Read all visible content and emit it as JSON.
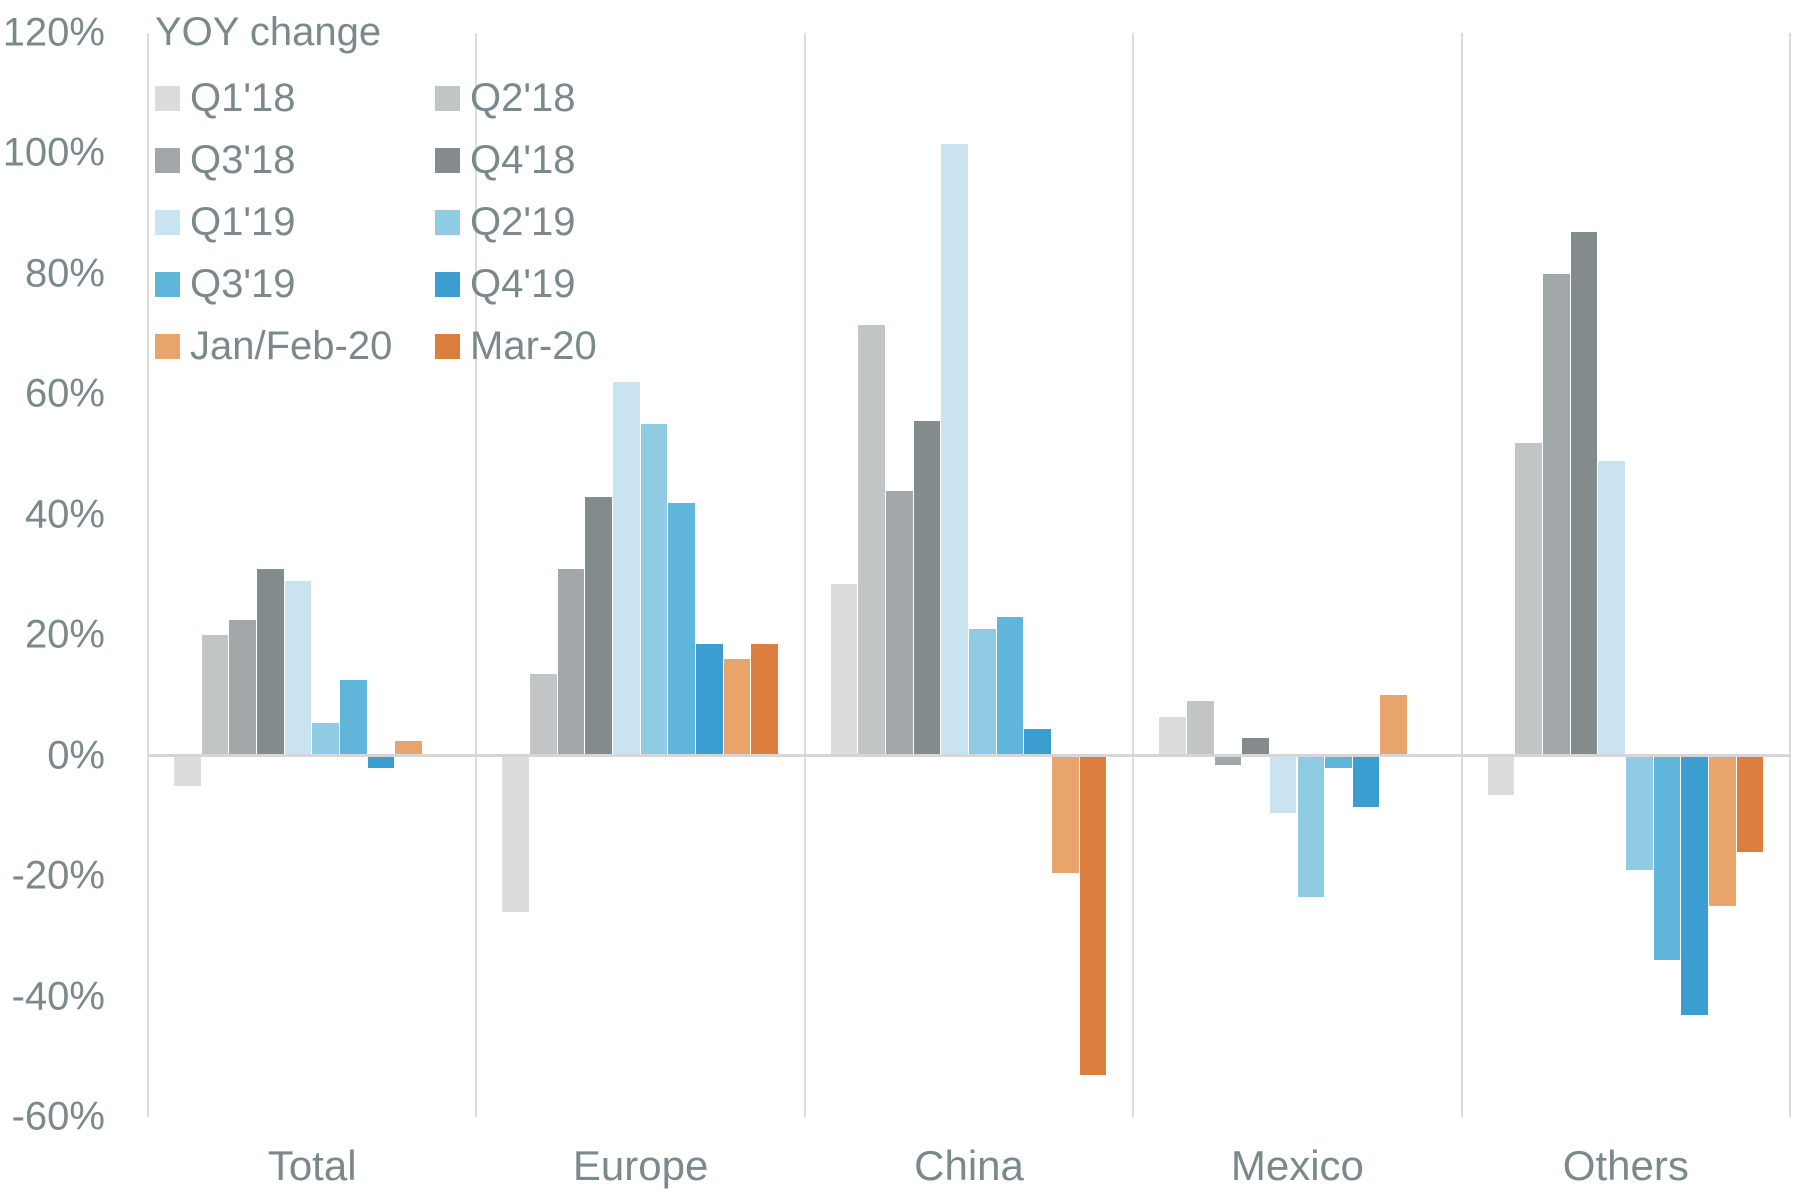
{
  "chart_data": {
    "type": "bar",
    "title": "YOY change",
    "categories": [
      "Total",
      "Europe",
      "China",
      "Mexico",
      "Others"
    ],
    "series": [
      {
        "name": "Q1'18",
        "color": "#dcdcdc",
        "values": [
          -5,
          -26,
          28.5,
          6.5,
          -6.5
        ]
      },
      {
        "name": "Q2'18",
        "color": "#c2c5c6",
        "values": [
          20,
          13.5,
          71.5,
          9,
          52
        ]
      },
      {
        "name": "Q3'18",
        "color": "#a2a7a9",
        "values": [
          22.5,
          31,
          44,
          -1.5,
          80
        ]
      },
      {
        "name": "Q4'18",
        "color": "#838b8d",
        "values": [
          31,
          43,
          55.5,
          3,
          87
        ]
      },
      {
        "name": "Q1'19",
        "color": "#c9e3f1",
        "values": [
          29,
          62,
          101.5,
          -9.5,
          49
        ]
      },
      {
        "name": "Q2'19",
        "color": "#90cbe4",
        "values": [
          5.5,
          55,
          21,
          -23.5,
          -19
        ]
      },
      {
        "name": "Q3'19",
        "color": "#60b5da",
        "values": [
          12.5,
          42,
          23,
          -2,
          -34
        ]
      },
      {
        "name": "Q4'19",
        "color": "#3c9dd1",
        "values": [
          -2,
          18.5,
          4.5,
          -8.5,
          -43
        ]
      },
      {
        "name": "Jan/Feb-20",
        "color": "#e9a46c",
        "values": [
          2.5,
          16,
          -19.5,
          10,
          -25
        ]
      },
      {
        "name": "Mar-20",
        "color": "#dc7e3d",
        "values": [
          0,
          18.5,
          -53,
          0,
          -16
        ]
      }
    ],
    "yticks": [
      {
        "label": "120%",
        "value": 120
      },
      {
        "label": "100%",
        "value": 100
      },
      {
        "label": "80%",
        "value": 80
      },
      {
        "label": "60%",
        "value": 60
      },
      {
        "label": "40%",
        "value": 40
      },
      {
        "label": "20%",
        "value": 20
      },
      {
        "label": "0%",
        "value": 0
      },
      {
        "label": "-20%",
        "value": -20
      },
      {
        "label": "-40%",
        "value": -40
      },
      {
        "label": "-60%",
        "value": -60
      }
    ],
    "ylim": [
      -60,
      120
    ],
    "legend_position": "top-left",
    "legend_rows": [
      [
        "Q1'18",
        "Q2'18"
      ],
      [
        "Q3'18",
        "Q4'18"
      ],
      [
        "Q1'19",
        "Q2'19"
      ],
      [
        "Q3'19",
        "Q4'19"
      ],
      [
        "Jan/Feb-20",
        "Mar-20"
      ]
    ],
    "grid": "vertical category separators only, horizontal zero line"
  },
  "colors": {
    "axis_line": "#dcdcdc",
    "zero_line": "#d6d6d6",
    "text": "#7b898d",
    "background": "#ffffff"
  }
}
